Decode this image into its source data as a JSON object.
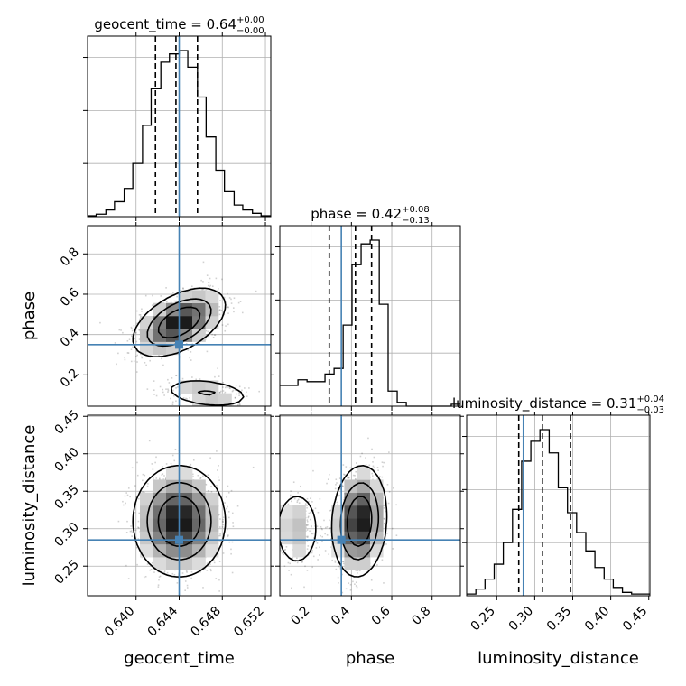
{
  "chart_data": {
    "type": "corner",
    "parameters": [
      "geocent_time",
      "phase",
      "luminosity_distance"
    ],
    "axis_labels": [
      "geocent_time",
      "phase",
      "luminosity_distance"
    ],
    "truths": [
      0.644,
      0.35,
      0.285
    ],
    "grid": true,
    "titles": [
      {
        "param": "geocent_time",
        "prefix": "geocent_time = 0.64",
        "sup": "+0.00",
        "sub": "−0.00"
      },
      {
        "param": "phase",
        "prefix": "phase = 0.42",
        "sup": "+0.08",
        "sub": "−0.13"
      },
      {
        "param": "luminosity_distance",
        "prefix": "luminosity_distance = 0.31",
        "sup": "+0.04",
        "sub": "−0.03"
      }
    ],
    "ranges": {
      "geocent_time": [
        0.6355,
        0.6525
      ],
      "phase": [
        0.045,
        0.94
      ],
      "luminosity_distance": [
        0.2105,
        0.4515
      ]
    },
    "ticks": {
      "geocent_time": {
        "values": [
          0.64,
          0.644,
          0.648,
          0.652
        ],
        "labels": [
          "0.640",
          "0.644",
          "0.648",
          "0.652"
        ]
      },
      "phase": {
        "values": [
          0.2,
          0.4,
          0.6,
          0.8
        ],
        "labels": [
          "0.2",
          "0.4",
          "0.6",
          "0.8"
        ]
      },
      "luminosity_distance": {
        "values": [
          0.25,
          0.3,
          0.35,
          0.4,
          0.45
        ],
        "labels": [
          "0.25",
          "0.30",
          "0.35",
          "0.40",
          "0.45"
        ]
      }
    },
    "quantiles": {
      "geocent_time": [
        0.6418,
        0.6437,
        0.6457
      ],
      "phase": [
        0.29,
        0.42,
        0.5
      ],
      "luminosity_distance": [
        0.279,
        0.31,
        0.347
      ]
    },
    "histograms": {
      "geocent_time": {
        "edges": [
          0.6355,
          0.6363,
          0.6372,
          0.638,
          0.6389,
          0.6397,
          0.6406,
          0.6414,
          0.6423,
          0.6431,
          0.644,
          0.6448,
          0.6457,
          0.6465,
          0.6474,
          0.6482,
          0.6491,
          0.6499,
          0.6508,
          0.6516,
          0.6525
        ],
        "counts": [
          0.5,
          1.5,
          4,
          9,
          17,
          32,
          55,
          77,
          93,
          98,
          100,
          90,
          72,
          48,
          28,
          15,
          7,
          4,
          2,
          0.5
        ]
      },
      "phase": {
        "edges": [
          0.045,
          0.09,
          0.135,
          0.18,
          0.224,
          0.269,
          0.314,
          0.359,
          0.403,
          0.448,
          0.493,
          0.538,
          0.582,
          0.627,
          0.672,
          0.716,
          0.761,
          0.806,
          0.851,
          0.895,
          0.94
        ],
        "counts": [
          11,
          11,
          14,
          13,
          13,
          17,
          20,
          43,
          75,
          86,
          88,
          54,
          8,
          2,
          0,
          0,
          0,
          0,
          0,
          1
        ]
      },
      "luminosity_distance": {
        "edges": [
          0.2105,
          0.2226,
          0.2346,
          0.2467,
          0.2587,
          0.2708,
          0.2828,
          0.2949,
          0.3069,
          0.319,
          0.331,
          0.3431,
          0.3551,
          0.3672,
          0.3792,
          0.3913,
          0.4033,
          0.4154,
          0.4274,
          0.4395,
          0.4515
        ],
        "counts": [
          1,
          4,
          10,
          19,
          32,
          52,
          81,
          93,
          100,
          86,
          65,
          50,
          38,
          27,
          17,
          10,
          5,
          2,
          1,
          1
        ]
      }
    },
    "density_2d": [
      {
        "x": "geocent_time",
        "y": "phase",
        "modes": [
          {
            "cx": 0.644,
            "cy": 0.46,
            "sx": 0.0019,
            "sy": 0.075,
            "rho": 0.5,
            "w": 0.85
          },
          {
            "cx": 0.6466,
            "cy": 0.11,
            "sx": 0.002,
            "sy": 0.035,
            "rho": -0.3,
            "w": 0.15
          }
        ]
      },
      {
        "x": "geocent_time",
        "y": "luminosity_distance",
        "modes": [
          {
            "cx": 0.644,
            "cy": 0.31,
            "sx": 0.0019,
            "sy": 0.033,
            "rho": 0.0,
            "w": 1.0
          }
        ]
      },
      {
        "x": "phase",
        "y": "luminosity_distance",
        "modes": [
          {
            "cx": 0.44,
            "cy": 0.31,
            "sx": 0.06,
            "sy": 0.033,
            "rho": 0.1,
            "w": 0.82
          },
          {
            "cx": 0.13,
            "cy": 0.3,
            "sx": 0.06,
            "sy": 0.028,
            "rho": 0.0,
            "w": 0.18
          }
        ]
      }
    ],
    "colors": {
      "truth": "#4682b4",
      "hist": "#000000",
      "grid": "#b0b0b0"
    }
  }
}
